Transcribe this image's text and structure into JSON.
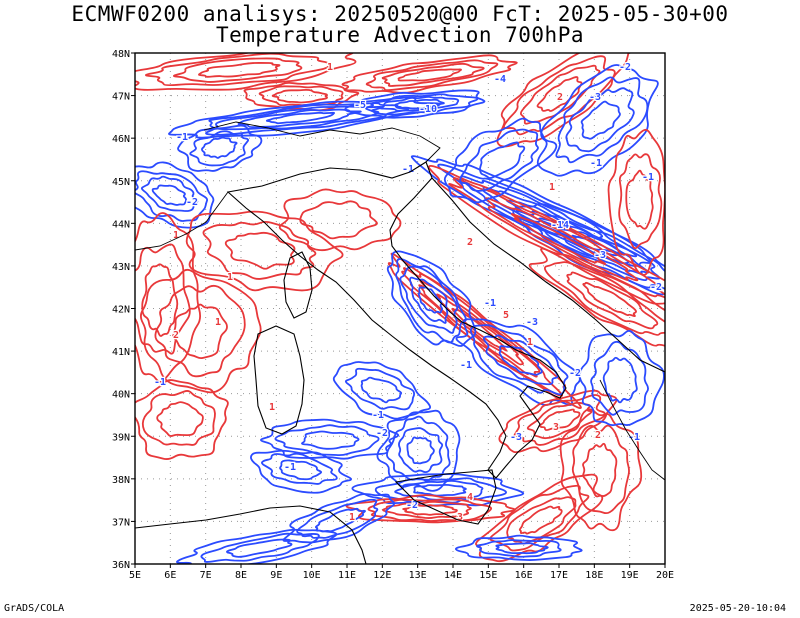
{
  "header": {
    "title_line1": "ECMWF0200 analisys: 20250520@00 FcT: 2025-05-30+00",
    "title_line2": "Temperature Advection 700hPa"
  },
  "map": {
    "lon_labels": [
      "5E",
      "6E",
      "7E",
      "8E",
      "9E",
      "10E",
      "11E",
      "12E",
      "13E",
      "14E",
      "15E",
      "16E",
      "17E",
      "18E",
      "19E",
      "20E"
    ],
    "lat_labels": [
      "36N",
      "37N",
      "38N",
      "39N",
      "40N",
      "41N",
      "42N",
      "43N",
      "44N",
      "45N",
      "46N",
      "47N",
      "48N"
    ],
    "colors": {
      "warm_contour": "#e8383a",
      "cold_contour": "#2b4bff",
      "coastline": "#000000"
    },
    "contour_labels_warm": [
      "1",
      "2",
      "3",
      "4",
      "5"
    ],
    "contour_labels_cold": [
      "-1",
      "-2",
      "-3",
      "-4",
      "-5",
      "-10",
      "-14"
    ]
  },
  "footer": {
    "left": "GrADS/COLA",
    "right": "2025-05-20-10:04"
  }
}
